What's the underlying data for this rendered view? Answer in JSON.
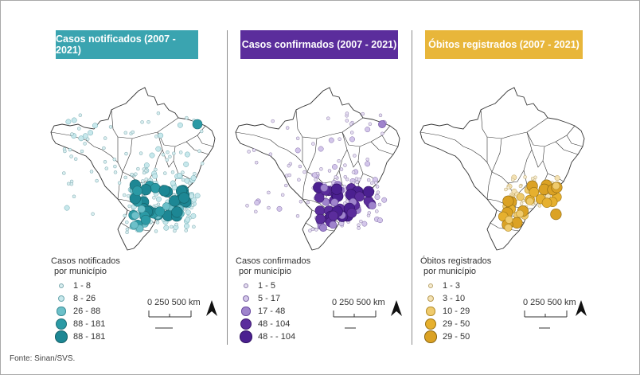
{
  "source": "Fonte: Sinan/SVS.",
  "scale_label": "0  250 500 km",
  "panels": [
    {
      "title": "Casos notificados (2007 - 2021)",
      "title_bg": "#3aa4b0",
      "accent": "#2f9aa6",
      "legend_title_1": "Casos notificados",
      "legend_title_2": "por município",
      "legend": [
        "1 - 8",
        "8 - 26",
        "26 - 88",
        "88 - 181",
        "88 - 181"
      ]
    },
    {
      "title": "Casos confirmados (2007 - 2021)",
      "title_bg": "#5b2d9c",
      "accent": "#5b2d9c",
      "legend_title_1": "Casos confirmados",
      "legend_title_2": "por município",
      "legend": [
        "1 - 5",
        "5 - 17",
        "17 - 48",
        "48 - 104",
        "48 - - 104"
      ]
    },
    {
      "title": "Óbitos registrados (2007 - 2021)",
      "title_bg": "#e8b63a",
      "accent": "#e6b02e",
      "legend_title_1": "Óbitos registrados",
      "legend_title_2": "por município",
      "legend": [
        "1 - 3",
        "3 - 10",
        "10 - 29",
        "29 - 50",
        "29 - 50"
      ]
    }
  ]
}
